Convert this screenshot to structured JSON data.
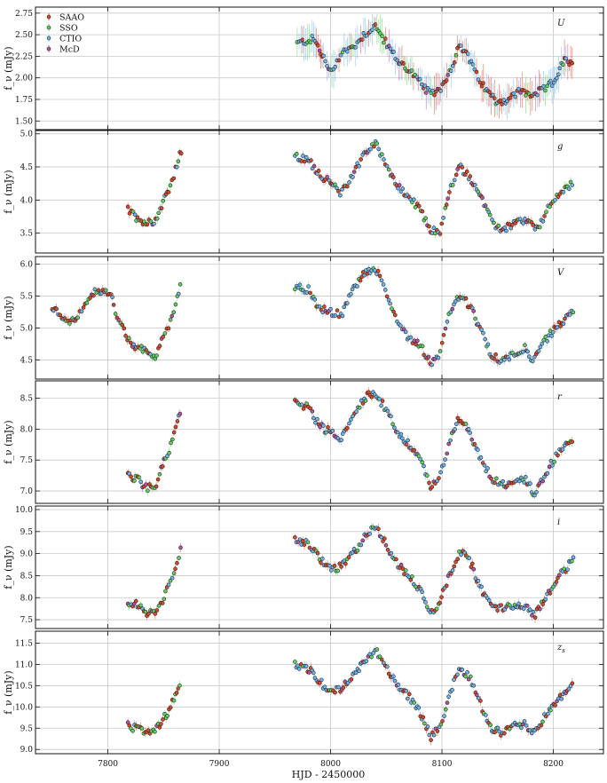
{
  "chart_data": {
    "type": "scatter",
    "xlabel": "HJD - 2450000",
    "xlim": [
      7735,
      8245
    ],
    "x_ticks": [
      7800,
      7900,
      8000,
      8100,
      8200
    ],
    "grid": true,
    "legend_placement": "top-left",
    "series": [
      {
        "name": "SAAO",
        "color": "#d9482b",
        "marker_edge": "#222222"
      },
      {
        "name": "SSO",
        "color": "#5fd35f",
        "marker_edge": "#222222"
      },
      {
        "name": "CTIO",
        "color": "#6fb4ea",
        "marker_edge": "#222222"
      },
      {
        "name": "McD",
        "color": "#b5549e",
        "marker_edge": "#222222"
      }
    ],
    "panels": [
      {
        "band": "U",
        "ylabel": "f_ν (mJy)",
        "ylim": [
          1.4,
          2.82
        ],
        "y_ticks": [
          1.5,
          1.75,
          2.0,
          2.25,
          2.5,
          2.75
        ],
        "y_tick_labels": [
          "1.50",
          "1.75",
          "2.00",
          "2.25",
          "2.50",
          "2.75"
        ],
        "segments": [],
        "anchors": [
          [
            7970,
            2.4
          ],
          [
            7985,
            2.45
          ],
          [
            7993,
            2.25
          ],
          [
            8000,
            2.05
          ],
          [
            8010,
            2.3
          ],
          [
            8020,
            2.35
          ],
          [
            8030,
            2.5
          ],
          [
            8040,
            2.6
          ],
          [
            8050,
            2.4
          ],
          [
            8060,
            2.2
          ],
          [
            8070,
            2.1
          ],
          [
            8080,
            1.95
          ],
          [
            8090,
            1.8
          ],
          [
            8100,
            1.9
          ],
          [
            8108,
            2.1
          ],
          [
            8115,
            2.35
          ],
          [
            8122,
            2.3
          ],
          [
            8130,
            2.05
          ],
          [
            8140,
            1.85
          ],
          [
            8150,
            1.72
          ],
          [
            8160,
            1.75
          ],
          [
            8170,
            1.85
          ],
          [
            8180,
            1.8
          ],
          [
            8190,
            1.85
          ],
          [
            8200,
            1.95
          ],
          [
            8210,
            2.2
          ],
          [
            8218,
            2.15
          ]
        ]
      },
      {
        "band": "g",
        "ylabel": "f_ν (mJy)",
        "ylim": [
          3.2,
          5.05
        ],
        "y_ticks": [
          3.5,
          4.0,
          4.5,
          5.0
        ],
        "y_tick_labels": [
          "3.5",
          "4.0",
          "4.5",
          "5.0"
        ],
        "segments": [
          [
            [
              7818,
              3.85
            ],
            [
              7825,
              3.75
            ],
            [
              7835,
              3.65
            ],
            [
              7843,
              3.7
            ],
            [
              7850,
              4.0
            ],
            [
              7858,
              4.3
            ],
            [
              7866,
              4.75
            ]
          ]
        ],
        "anchors": [
          [
            7968,
            4.65
          ],
          [
            7980,
            4.6
          ],
          [
            7990,
            4.4
          ],
          [
            8000,
            4.25
          ],
          [
            8010,
            4.1
          ],
          [
            8020,
            4.4
          ],
          [
            8030,
            4.7
          ],
          [
            8040,
            4.85
          ],
          [
            8050,
            4.55
          ],
          [
            8060,
            4.2
          ],
          [
            8070,
            4.05
          ],
          [
            8080,
            3.85
          ],
          [
            8090,
            3.55
          ],
          [
            8098,
            3.5
          ],
          [
            8108,
            4.2
          ],
          [
            8116,
            4.5
          ],
          [
            8125,
            4.35
          ],
          [
            8135,
            4.05
          ],
          [
            8145,
            3.65
          ],
          [
            8155,
            3.55
          ],
          [
            8165,
            3.65
          ],
          [
            8175,
            3.7
          ],
          [
            8185,
            3.55
          ],
          [
            8195,
            3.85
          ],
          [
            8205,
            4.1
          ],
          [
            8218,
            4.25
          ]
        ]
      },
      {
        "band": "V",
        "ylabel": "f_ν (mJy)",
        "ylim": [
          4.2,
          6.12
        ],
        "y_ticks": [
          4.5,
          5.0,
          5.5,
          6.0
        ],
        "y_tick_labels": [
          "4.5",
          "5.0",
          "5.5",
          "6.0"
        ],
        "segments": [
          [
            [
              7750,
              5.3
            ],
            [
              7758,
              5.2
            ],
            [
              7768,
              5.1
            ],
            [
              7778,
              5.3
            ],
            [
              7790,
              5.6
            ],
            [
              7802,
              5.55
            ],
            [
              7810,
              5.1
            ],
            [
              7820,
              4.75
            ],
            [
              7832,
              4.65
            ],
            [
              7842,
              4.55
            ],
            [
              7850,
              4.85
            ],
            [
              7858,
              5.2
            ],
            [
              7866,
              5.75
            ]
          ]
        ],
        "anchors": [
          [
            7968,
            5.65
          ],
          [
            7980,
            5.6
          ],
          [
            7990,
            5.3
          ],
          [
            8000,
            5.25
          ],
          [
            8010,
            5.2
          ],
          [
            8020,
            5.6
          ],
          [
            8030,
            5.85
          ],
          [
            8040,
            5.95
          ],
          [
            8050,
            5.55
          ],
          [
            8060,
            5.1
          ],
          [
            8070,
            4.85
          ],
          [
            8080,
            4.75
          ],
          [
            8090,
            4.45
          ],
          [
            8098,
            4.6
          ],
          [
            8108,
            5.3
          ],
          [
            8116,
            5.5
          ],
          [
            8125,
            5.35
          ],
          [
            8135,
            4.95
          ],
          [
            8145,
            4.55
          ],
          [
            8155,
            4.5
          ],
          [
            8165,
            4.6
          ],
          [
            8175,
            4.7
          ],
          [
            8182,
            4.45
          ],
          [
            8192,
            4.8
          ],
          [
            8205,
            5.05
          ],
          [
            8218,
            5.25
          ]
        ]
      },
      {
        "band": "r",
        "ylabel": "f_ν (mJy)",
        "ylim": [
          6.8,
          8.78
        ],
        "y_ticks": [
          7.0,
          7.5,
          8.0,
          8.5
        ],
        "y_tick_labels": [
          "7.0",
          "7.5",
          "8.0",
          "8.5"
        ],
        "segments": [
          [
            [
              7818,
              7.25
            ],
            [
              7826,
              7.2
            ],
            [
              7835,
              7.05
            ],
            [
              7843,
              7.1
            ],
            [
              7850,
              7.45
            ],
            [
              7858,
              7.8
            ],
            [
              7866,
              8.35
            ]
          ]
        ],
        "anchors": [
          [
            7968,
            8.45
          ],
          [
            7980,
            8.35
          ],
          [
            7990,
            8.05
          ],
          [
            8000,
            7.95
          ],
          [
            8010,
            7.85
          ],
          [
            8020,
            8.2
          ],
          [
            8030,
            8.5
          ],
          [
            8040,
            8.6
          ],
          [
            8050,
            8.3
          ],
          [
            8060,
            7.95
          ],
          [
            8070,
            7.75
          ],
          [
            8080,
            7.55
          ],
          [
            8090,
            7.05
          ],
          [
            8098,
            7.2
          ],
          [
            8108,
            7.9
          ],
          [
            8116,
            8.2
          ],
          [
            8125,
            7.95
          ],
          [
            8135,
            7.5
          ],
          [
            8145,
            7.2
          ],
          [
            8155,
            7.1
          ],
          [
            8165,
            7.15
          ],
          [
            8175,
            7.2
          ],
          [
            8183,
            6.95
          ],
          [
            8192,
            7.25
          ],
          [
            8205,
            7.65
          ],
          [
            8218,
            7.8
          ]
        ]
      },
      {
        "band": "i",
        "ylabel": "f_ν (mJy)",
        "ylim": [
          7.3,
          10.08
        ],
        "y_ticks": [
          7.5,
          8.0,
          8.5,
          9.0,
          9.5,
          10.0
        ],
        "y_tick_labels": [
          "7.5",
          "8.0",
          "8.5",
          "9.0",
          "9.5",
          "10.0"
        ],
        "segments": [
          [
            [
              7818,
              7.9
            ],
            [
              7826,
              7.85
            ],
            [
              7835,
              7.6
            ],
            [
              7843,
              7.7
            ],
            [
              7850,
              8.0
            ],
            [
              7858,
              8.4
            ],
            [
              7866,
              9.2
            ]
          ]
        ],
        "anchors": [
          [
            7968,
            9.35
          ],
          [
            7980,
            9.2
          ],
          [
            7990,
            8.9
          ],
          [
            8000,
            8.65
          ],
          [
            8010,
            8.7
          ],
          [
            8020,
            9.0
          ],
          [
            8030,
            9.35
          ],
          [
            8040,
            9.65
          ],
          [
            8050,
            9.2
          ],
          [
            8060,
            8.75
          ],
          [
            8070,
            8.5
          ],
          [
            8080,
            8.2
          ],
          [
            8090,
            7.65
          ],
          [
            8098,
            7.9
          ],
          [
            8108,
            8.6
          ],
          [
            8116,
            9.05
          ],
          [
            8125,
            8.85
          ],
          [
            8135,
            8.2
          ],
          [
            8145,
            7.8
          ],
          [
            8155,
            7.75
          ],
          [
            8165,
            7.85
          ],
          [
            8175,
            7.8
          ],
          [
            8183,
            7.6
          ],
          [
            8192,
            7.95
          ],
          [
            8205,
            8.5
          ],
          [
            8218,
            8.85
          ]
        ]
      },
      {
        "band": "z_s",
        "ylabel": "f_ν (mJy)",
        "ylim": [
          8.9,
          11.78
        ],
        "y_ticks": [
          9.0,
          9.5,
          10.0,
          10.5,
          11.0,
          11.5
        ],
        "y_tick_labels": [
          "9.0",
          "9.5",
          "10.0",
          "10.5",
          "11.0",
          "11.5"
        ],
        "segments": [
          [
            [
              7818,
              9.55
            ],
            [
              7826,
              9.5
            ],
            [
              7835,
              9.35
            ],
            [
              7843,
              9.45
            ],
            [
              7850,
              9.7
            ],
            [
              7858,
              10.1
            ],
            [
              7866,
              10.7
            ]
          ]
        ],
        "anchors": [
          [
            7968,
            11.0
          ],
          [
            7980,
            10.9
          ],
          [
            7990,
            10.6
          ],
          [
            8000,
            10.35
          ],
          [
            8010,
            10.45
          ],
          [
            8020,
            10.7
          ],
          [
            8030,
            11.05
          ],
          [
            8040,
            11.35
          ],
          [
            8050,
            10.95
          ],
          [
            8060,
            10.5
          ],
          [
            8070,
            10.25
          ],
          [
            8080,
            9.9
          ],
          [
            8090,
            9.3
          ],
          [
            8098,
            9.5
          ],
          [
            8108,
            10.4
          ],
          [
            8116,
            10.9
          ],
          [
            8125,
            10.7
          ],
          [
            8135,
            10.05
          ],
          [
            8145,
            9.45
          ],
          [
            8155,
            9.4
          ],
          [
            8165,
            9.55
          ],
          [
            8175,
            9.6
          ],
          [
            8183,
            9.35
          ],
          [
            8192,
            9.75
          ],
          [
            8205,
            10.2
          ],
          [
            8218,
            10.5
          ]
        ]
      }
    ]
  }
}
